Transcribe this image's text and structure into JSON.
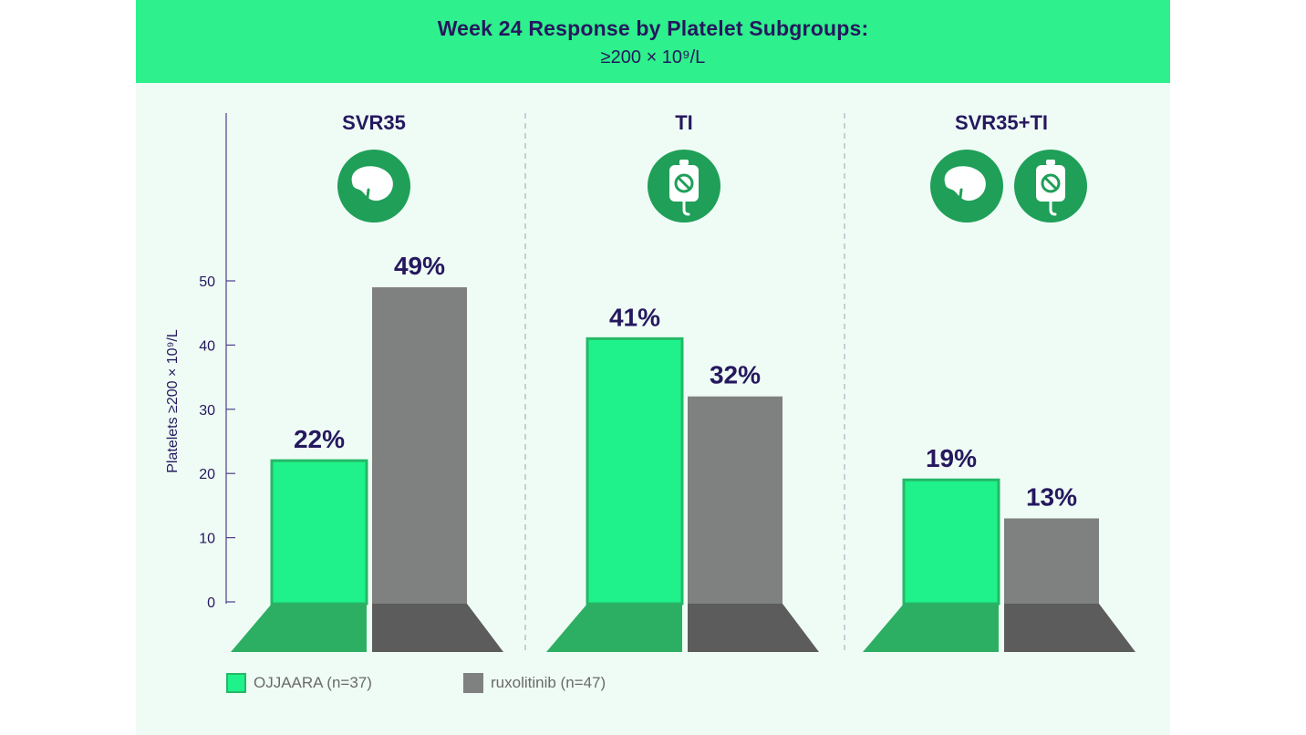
{
  "header": {
    "title": "Week 24 Response by Platelet Subgroups:",
    "subtitle": "≥200 × 10⁹/L"
  },
  "colors": {
    "header_bg": "#2ef08c",
    "panel_bg": "#effcf5",
    "ojjaara": "#1ff28a",
    "ojjaara_border": "#25b868",
    "ojjaara_base": "#2daf63",
    "ruxolitinib": "#7f8080",
    "ruxolitinib_base": "#5c5c5c",
    "text": "#25185e",
    "icon": "#1f9f58"
  },
  "chart_data": {
    "type": "bar",
    "categories": [
      "SVR35",
      "TI",
      "SVR35+TI"
    ],
    "series": [
      {
        "name": "OJJAARA (n=37)",
        "values": [
          22,
          41,
          19
        ],
        "labels": [
          "22%",
          "41%",
          "19%"
        ]
      },
      {
        "name": "ruxolitinib (n=47)",
        "values": [
          49,
          32,
          13
        ],
        "labels": [
          "49%",
          "32%",
          "13%"
        ]
      }
    ],
    "ylabel": "Platelets ≥200 × 10⁹/L",
    "ylim": [
      0,
      50
    ],
    "yticks": [
      "0",
      "10",
      "20",
      "30",
      "40",
      "50"
    ],
    "category_icons": [
      [
        "spleen-icon"
      ],
      [
        "transfusion-bag-icon"
      ],
      [
        "spleen-icon",
        "transfusion-bag-icon"
      ]
    ],
    "grid": false,
    "legend": "bottom-left"
  }
}
